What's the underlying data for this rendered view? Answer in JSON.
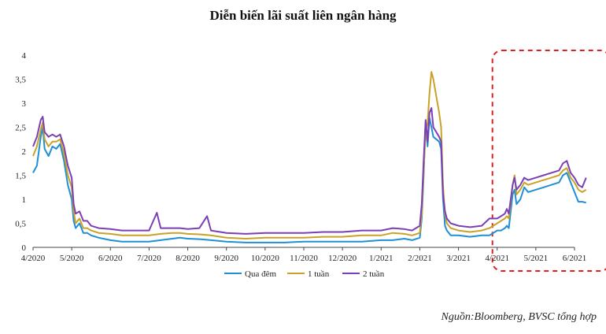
{
  "chart_data": {
    "type": "line",
    "title": "Diễn biến lãi suất liên ngân hàng",
    "xlabel": "",
    "ylabel": "",
    "ylim": [
      0,
      4
    ],
    "y_ticks": [
      "0",
      "0,5",
      "1",
      "1,5",
      "2",
      "2,5",
      "3",
      "3,5",
      "4"
    ],
    "x_ticks": [
      "4/2020",
      "5/2020",
      "6/2020",
      "7/2020",
      "8/2020",
      "9/2020",
      "10/2020",
      "11/2020",
      "12/2020",
      "1/2021",
      "2/2021",
      "3/2021",
      "4/2021",
      "5/2021",
      "6/2021"
    ],
    "legend_position": "bottom",
    "highlight": {
      "from": 12.0,
      "to": 14.3,
      "color": "#e02020",
      "style": "dashed-rounded"
    },
    "series": [
      {
        "name": "Qua đêm",
        "color": "#1f8fd6",
        "points": [
          [
            0,
            1.55
          ],
          [
            0.1,
            1.7
          ],
          [
            0.2,
            2.3
          ],
          [
            0.25,
            2.5
          ],
          [
            0.3,
            2.05
          ],
          [
            0.4,
            1.9
          ],
          [
            0.5,
            2.1
          ],
          [
            0.6,
            2.05
          ],
          [
            0.7,
            2.15
          ],
          [
            0.8,
            1.8
          ],
          [
            0.9,
            1.3
          ],
          [
            1.0,
            1.0
          ],
          [
            1.05,
            0.55
          ],
          [
            1.1,
            0.4
          ],
          [
            1.2,
            0.5
          ],
          [
            1.3,
            0.3
          ],
          [
            1.4,
            0.3
          ],
          [
            1.5,
            0.25
          ],
          [
            1.7,
            0.2
          ],
          [
            2.0,
            0.15
          ],
          [
            2.3,
            0.12
          ],
          [
            2.6,
            0.12
          ],
          [
            3.0,
            0.12
          ],
          [
            3.3,
            0.15
          ],
          [
            3.6,
            0.18
          ],
          [
            3.8,
            0.2
          ],
          [
            4.0,
            0.18
          ],
          [
            4.3,
            0.17
          ],
          [
            4.6,
            0.15
          ],
          [
            5.0,
            0.12
          ],
          [
            5.5,
            0.1
          ],
          [
            6.0,
            0.1
          ],
          [
            6.5,
            0.1
          ],
          [
            7.0,
            0.12
          ],
          [
            7.5,
            0.12
          ],
          [
            8.0,
            0.12
          ],
          [
            8.5,
            0.12
          ],
          [
            9.0,
            0.15
          ],
          [
            9.3,
            0.15
          ],
          [
            9.6,
            0.18
          ],
          [
            9.8,
            0.15
          ],
          [
            10.0,
            0.2
          ],
          [
            10.05,
            0.6
          ],
          [
            10.1,
            1.5
          ],
          [
            10.15,
            2.6
          ],
          [
            10.2,
            2.1
          ],
          [
            10.25,
            2.7
          ],
          [
            10.3,
            2.5
          ],
          [
            10.35,
            2.3
          ],
          [
            10.5,
            2.2
          ],
          [
            10.55,
            2.05
          ],
          [
            10.6,
            1.0
          ],
          [
            10.65,
            0.45
          ],
          [
            10.7,
            0.35
          ],
          [
            10.8,
            0.25
          ],
          [
            11.0,
            0.25
          ],
          [
            11.3,
            0.22
          ],
          [
            11.6,
            0.25
          ],
          [
            11.8,
            0.25
          ],
          [
            12.0,
            0.35
          ],
          [
            12.1,
            0.35
          ],
          [
            12.2,
            0.4
          ],
          [
            12.25,
            0.45
          ],
          [
            12.3,
            0.4
          ],
          [
            12.4,
            1.1
          ],
          [
            12.45,
            1.2
          ],
          [
            12.5,
            0.9
          ],
          [
            12.6,
            1.0
          ],
          [
            12.7,
            1.25
          ],
          [
            12.8,
            1.15
          ],
          [
            13.0,
            1.2
          ],
          [
            13.2,
            1.25
          ],
          [
            13.4,
            1.3
          ],
          [
            13.6,
            1.35
          ],
          [
            13.7,
            1.5
          ],
          [
            13.8,
            1.55
          ],
          [
            13.9,
            1.35
          ],
          [
            14.0,
            1.15
          ],
          [
            14.1,
            0.95
          ],
          [
            14.2,
            0.95
          ],
          [
            14.3,
            0.93
          ]
        ]
      },
      {
        "name": "1 tuần",
        "color": "#c9a227",
        "points": [
          [
            0,
            1.9
          ],
          [
            0.1,
            2.1
          ],
          [
            0.2,
            2.45
          ],
          [
            0.25,
            2.6
          ],
          [
            0.3,
            2.25
          ],
          [
            0.4,
            2.1
          ],
          [
            0.5,
            2.2
          ],
          [
            0.6,
            2.2
          ],
          [
            0.7,
            2.25
          ],
          [
            0.8,
            1.95
          ],
          [
            0.9,
            1.5
          ],
          [
            1.0,
            1.25
          ],
          [
            1.05,
            0.75
          ],
          [
            1.1,
            0.5
          ],
          [
            1.2,
            0.6
          ],
          [
            1.3,
            0.4
          ],
          [
            1.4,
            0.4
          ],
          [
            1.5,
            0.35
          ],
          [
            1.7,
            0.3
          ],
          [
            2.0,
            0.28
          ],
          [
            2.3,
            0.25
          ],
          [
            2.6,
            0.25
          ],
          [
            3.0,
            0.25
          ],
          [
            3.3,
            0.28
          ],
          [
            3.6,
            0.3
          ],
          [
            3.8,
            0.3
          ],
          [
            4.0,
            0.28
          ],
          [
            4.3,
            0.27
          ],
          [
            4.6,
            0.25
          ],
          [
            5.0,
            0.2
          ],
          [
            5.5,
            0.18
          ],
          [
            6.0,
            0.2
          ],
          [
            6.5,
            0.2
          ],
          [
            7.0,
            0.2
          ],
          [
            7.5,
            0.22
          ],
          [
            8.0,
            0.22
          ],
          [
            8.5,
            0.25
          ],
          [
            9.0,
            0.25
          ],
          [
            9.3,
            0.3
          ],
          [
            9.6,
            0.28
          ],
          [
            9.8,
            0.25
          ],
          [
            10.0,
            0.3
          ],
          [
            10.05,
            0.7
          ],
          [
            10.1,
            1.6
          ],
          [
            10.15,
            2.4
          ],
          [
            10.2,
            2.6
          ],
          [
            10.25,
            3.2
          ],
          [
            10.3,
            3.65
          ],
          [
            10.35,
            3.5
          ],
          [
            10.5,
            2.8
          ],
          [
            10.55,
            2.5
          ],
          [
            10.6,
            1.3
          ],
          [
            10.65,
            0.7
          ],
          [
            10.7,
            0.5
          ],
          [
            10.8,
            0.4
          ],
          [
            11.0,
            0.35
          ],
          [
            11.3,
            0.32
          ],
          [
            11.6,
            0.35
          ],
          [
            11.8,
            0.4
          ],
          [
            12.0,
            0.5
          ],
          [
            12.1,
            0.55
          ],
          [
            12.2,
            0.6
          ],
          [
            12.25,
            0.65
          ],
          [
            12.3,
            0.6
          ],
          [
            12.4,
            1.3
          ],
          [
            12.45,
            1.5
          ],
          [
            12.5,
            1.1
          ],
          [
            12.6,
            1.2
          ],
          [
            12.7,
            1.35
          ],
          [
            12.8,
            1.3
          ],
          [
            13.0,
            1.35
          ],
          [
            13.2,
            1.4
          ],
          [
            13.4,
            1.45
          ],
          [
            13.6,
            1.5
          ],
          [
            13.7,
            1.6
          ],
          [
            13.8,
            1.65
          ],
          [
            13.9,
            1.45
          ],
          [
            14.0,
            1.35
          ],
          [
            14.1,
            1.2
          ],
          [
            14.2,
            1.15
          ],
          [
            14.3,
            1.2
          ]
        ]
      },
      {
        "name": "2 tuần",
        "color": "#7b3fb5",
        "points": [
          [
            0,
            2.1
          ],
          [
            0.1,
            2.3
          ],
          [
            0.2,
            2.65
          ],
          [
            0.25,
            2.72
          ],
          [
            0.3,
            2.4
          ],
          [
            0.4,
            2.3
          ],
          [
            0.5,
            2.35
          ],
          [
            0.6,
            2.3
          ],
          [
            0.7,
            2.35
          ],
          [
            0.8,
            2.1
          ],
          [
            0.9,
            1.7
          ],
          [
            1.0,
            1.45
          ],
          [
            1.05,
            0.9
          ],
          [
            1.1,
            0.7
          ],
          [
            1.2,
            0.75
          ],
          [
            1.3,
            0.55
          ],
          [
            1.4,
            0.55
          ],
          [
            1.5,
            0.45
          ],
          [
            1.7,
            0.4
          ],
          [
            2.0,
            0.38
          ],
          [
            2.3,
            0.35
          ],
          [
            2.6,
            0.35
          ],
          [
            3.0,
            0.35
          ],
          [
            3.2,
            0.72
          ],
          [
            3.3,
            0.4
          ],
          [
            3.6,
            0.4
          ],
          [
            3.8,
            0.4
          ],
          [
            4.0,
            0.38
          ],
          [
            4.3,
            0.4
          ],
          [
            4.5,
            0.65
          ],
          [
            4.6,
            0.35
          ],
          [
            5.0,
            0.3
          ],
          [
            5.5,
            0.28
          ],
          [
            6.0,
            0.3
          ],
          [
            6.5,
            0.3
          ],
          [
            7.0,
            0.3
          ],
          [
            7.5,
            0.32
          ],
          [
            8.0,
            0.32
          ],
          [
            8.5,
            0.35
          ],
          [
            9.0,
            0.35
          ],
          [
            9.3,
            0.4
          ],
          [
            9.6,
            0.38
          ],
          [
            9.8,
            0.35
          ],
          [
            10.0,
            0.45
          ],
          [
            10.05,
            0.9
          ],
          [
            10.1,
            1.8
          ],
          [
            10.15,
            2.65
          ],
          [
            10.2,
            2.2
          ],
          [
            10.25,
            2.8
          ],
          [
            10.3,
            2.9
          ],
          [
            10.35,
            2.5
          ],
          [
            10.5,
            2.3
          ],
          [
            10.55,
            2.2
          ],
          [
            10.6,
            1.1
          ],
          [
            10.65,
            0.75
          ],
          [
            10.7,
            0.6
          ],
          [
            10.8,
            0.5
          ],
          [
            11.0,
            0.45
          ],
          [
            11.3,
            0.42
          ],
          [
            11.6,
            0.45
          ],
          [
            11.8,
            0.6
          ],
          [
            12.0,
            0.6
          ],
          [
            12.1,
            0.65
          ],
          [
            12.2,
            0.7
          ],
          [
            12.25,
            0.8
          ],
          [
            12.3,
            0.7
          ],
          [
            12.4,
            1.3
          ],
          [
            12.45,
            1.45
          ],
          [
            12.5,
            1.2
          ],
          [
            12.6,
            1.3
          ],
          [
            12.7,
            1.45
          ],
          [
            12.8,
            1.4
          ],
          [
            13.0,
            1.45
          ],
          [
            13.2,
            1.5
          ],
          [
            13.4,
            1.55
          ],
          [
            13.6,
            1.6
          ],
          [
            13.7,
            1.75
          ],
          [
            13.8,
            1.8
          ],
          [
            13.9,
            1.55
          ],
          [
            14.0,
            1.45
          ],
          [
            14.1,
            1.3
          ],
          [
            14.2,
            1.25
          ],
          [
            14.3,
            1.45
          ]
        ]
      }
    ]
  },
  "source_note": "Nguồn:Bloomberg, BVSC tổng hợp"
}
